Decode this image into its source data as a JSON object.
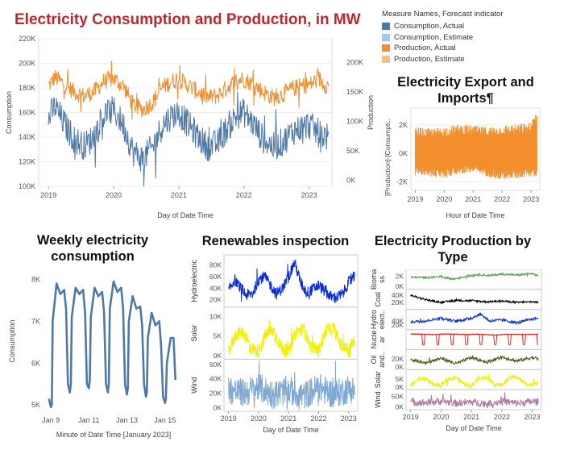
{
  "main_title": "Electricity Consumption and Production, in MW",
  "legend": {
    "title": "Measure Names, Forecast indicator",
    "items": [
      {
        "label": "Consumption, Actual",
        "color": "#4e79a7"
      },
      {
        "label": "Consumption, Estimate",
        "color": "#a0cbe8"
      },
      {
        "label": "Production, Actual",
        "color": "#f28e2b"
      },
      {
        "label": "Production, Estimate",
        "color": "#ffbe7d"
      }
    ]
  },
  "titles": {
    "export": "Electricity Export and Imports¶",
    "weekly": "Weekly electricity consumption",
    "renew": "Renewables inspection",
    "bytype": "Electricity Production by Type"
  },
  "chart_data": [
    {
      "id": "main",
      "type": "line",
      "xlabel": "Day of Date Time",
      "ylabel_left": "Consumption",
      "ylabel_right": "Production",
      "x_ticks": [
        "2019",
        "2020",
        "2021",
        "2022",
        "2023"
      ],
      "x_range": [
        2018.85,
        2023.35
      ],
      "y_left_ticks": [
        "100K",
        "120K",
        "140K",
        "160K",
        "180K",
        "200K",
        "220K"
      ],
      "y_left_range": [
        100000,
        220000
      ],
      "y_right_ticks": [
        "0K",
        "50K",
        "100K",
        "150K",
        "200K"
      ],
      "y_right_range": [
        -10000,
        240000
      ],
      "series": [
        {
          "name": "Consumption, Actual",
          "color": "#4e79a7",
          "x": [
            2019.0,
            2019.1,
            2019.25,
            2019.4,
            2019.55,
            2019.7,
            2019.85,
            2020.0,
            2020.15,
            2020.3,
            2020.45,
            2020.6,
            2020.75,
            2020.9,
            2021.0,
            2021.15,
            2021.3,
            2021.45,
            2021.6,
            2021.75,
            2021.9,
            2022.0,
            2022.15,
            2022.3,
            2022.45,
            2022.6,
            2022.75,
            2022.9,
            2023.0,
            2023.15,
            2023.3
          ],
          "y": [
            155000,
            165000,
            150000,
            138000,
            133000,
            140000,
            158000,
            162000,
            150000,
            128000,
            122000,
            132000,
            150000,
            158000,
            160000,
            150000,
            140000,
            132000,
            135000,
            148000,
            158000,
            160000,
            150000,
            138000,
            132000,
            136000,
            145000,
            148000,
            150000,
            143000,
            140000
          ]
        },
        {
          "name": "Production, Actual",
          "color": "#f28e2b",
          "x": [
            2019.0,
            2019.1,
            2019.25,
            2019.4,
            2019.55,
            2019.7,
            2019.85,
            2020.0,
            2020.15,
            2020.3,
            2020.45,
            2020.6,
            2020.75,
            2020.9,
            2021.0,
            2021.15,
            2021.3,
            2021.45,
            2021.6,
            2021.75,
            2021.9,
            2022.0,
            2022.15,
            2022.3,
            2022.45,
            2022.6,
            2022.75,
            2022.9,
            2023.0,
            2023.15,
            2023.3
          ],
          "y": [
            160000,
            175000,
            162000,
            150000,
            143000,
            150000,
            168000,
            172000,
            160000,
            128000,
            120000,
            132000,
            158000,
            168000,
            172000,
            160000,
            150000,
            140000,
            144000,
            158000,
            170000,
            172000,
            162000,
            150000,
            140000,
            146000,
            156000,
            160000,
            162000,
            172000,
            158000
          ]
        }
      ]
    },
    {
      "id": "export",
      "type": "line",
      "xlabel": "Hour of Date Time",
      "ylabel": "[Production]-[Consumpti..",
      "x_ticks": [
        "2019",
        "2020",
        "2021",
        "2022",
        "2023"
      ],
      "x_range": [
        2018.85,
        2023.3
      ],
      "y_ticks": [
        "-2K",
        "0K",
        "2K"
      ],
      "y_range": [
        -2600,
        3200
      ],
      "series": [
        {
          "name": "",
          "color": "#f28e2b",
          "x": [
            2019.0,
            2019.5,
            2020.0,
            2020.5,
            2021.0,
            2021.5,
            2022.0,
            2022.5,
            2023.0,
            2023.2
          ],
          "y": [
            400,
            300,
            200,
            400,
            500,
            300,
            200,
            400,
            500,
            2600
          ],
          "band_low": [
            -1400,
            -1500,
            -1600,
            -1300,
            -1200,
            -1500,
            -1700,
            -1600,
            -1500,
            -1500
          ],
          "band_high": [
            1700,
            1600,
            1700,
            1900,
            1800,
            1700,
            1800,
            1900,
            2000,
            3000
          ]
        }
      ]
    },
    {
      "id": "weekly",
      "type": "line",
      "xlabel": "Minute of Date Time [January 2023]",
      "ylabel": "Consumption",
      "x_ticks": [
        "Jan 9",
        "Jan 11",
        "Jan 13",
        "Jan 15"
      ],
      "x_range": [
        8.7,
        15.9
      ],
      "y_ticks": [
        "5K",
        "6K",
        "7K",
        "8K"
      ],
      "y_range": [
        4850,
        8200
      ],
      "series": [
        {
          "name": "",
          "color": "#4e79a7",
          "x": [
            8.9,
            9.0,
            9.05,
            9.1,
            9.3,
            9.5,
            9.7,
            9.8,
            9.9,
            10.0,
            10.05,
            10.1,
            10.3,
            10.5,
            10.7,
            10.8,
            10.9,
            11.0,
            11.05,
            11.1,
            11.3,
            11.5,
            11.7,
            11.8,
            11.9,
            12.0,
            12.05,
            12.1,
            12.3,
            12.5,
            12.7,
            12.8,
            12.9,
            13.0,
            13.05,
            13.1,
            13.3,
            13.5,
            13.7,
            13.8,
            13.9,
            14.0,
            14.05,
            14.1,
            14.3,
            14.5,
            14.7,
            14.8,
            14.9,
            15.0,
            15.05,
            15.1,
            15.3,
            15.45,
            15.55
          ],
          "y": [
            5150,
            4950,
            5000,
            7000,
            7900,
            7650,
            7750,
            7300,
            5500,
            5300,
            5500,
            7100,
            7800,
            7650,
            7750,
            7200,
            5500,
            5400,
            5600,
            7100,
            7800,
            7600,
            7700,
            7200,
            5500,
            5300,
            5500,
            7300,
            7950,
            7700,
            7800,
            7300,
            5500,
            5250,
            5400,
            7000,
            7600,
            7300,
            7350,
            6900,
            5500,
            5200,
            5300,
            6600,
            7200,
            6900,
            7000,
            6400,
            5200,
            5050,
            5150,
            6000,
            6600,
            6600,
            5600
          ]
        }
      ]
    },
    {
      "id": "renewables",
      "type": "line",
      "xlabel": "Day of Date Time",
      "x_ticks": [
        "2019",
        "2020",
        "2021",
        "2022",
        "2023"
      ],
      "x_range": [
        2018.85,
        2023.3
      ],
      "panels": [
        {
          "name": "Hydroelectric",
          "color": "#0a2de0",
          "y_ticks": [
            "20K",
            "40K",
            "60K",
            "80K"
          ],
          "y_range": [
            10000,
            95000
          ],
          "x": [
            2019.0,
            2019.2,
            2019.4,
            2019.6,
            2019.8,
            2020.0,
            2020.2,
            2020.4,
            2020.6,
            2020.8,
            2021.0,
            2021.2,
            2021.4,
            2021.6,
            2021.8,
            2022.0,
            2022.2,
            2022.4,
            2022.6,
            2022.8,
            2023.0,
            2023.2
          ],
          "y": [
            35000,
            55000,
            40000,
            28000,
            30000,
            55000,
            60000,
            45000,
            30000,
            40000,
            60000,
            85000,
            50000,
            32000,
            38000,
            45000,
            35000,
            25000,
            24000,
            30000,
            50000,
            60000
          ]
        },
        {
          "name": "Solar",
          "color": "#f0f000",
          "y_ticks": [
            "0K",
            "5K",
            "10K"
          ],
          "y_range": [
            -500,
            12000
          ],
          "x": [
            2019.0,
            2019.25,
            2019.5,
            2019.75,
            2020.0,
            2020.25,
            2020.5,
            2020.75,
            2021.0,
            2021.25,
            2021.5,
            2021.75,
            2022.0,
            2022.25,
            2022.5,
            2022.75,
            2023.0,
            2023.2
          ],
          "y": [
            1000,
            5500,
            6000,
            2000,
            1000,
            5500,
            6500,
            2000,
            1000,
            6000,
            6800,
            2200,
            1200,
            6500,
            7000,
            2500,
            1500,
            4000
          ]
        },
        {
          "name": "Wind",
          "color": "#7fa9d1",
          "y_ticks": [
            "0K",
            "20K",
            "40K",
            "60K"
          ],
          "y_range": [
            -3000,
            65000
          ],
          "x": [
            2019.0,
            2019.5,
            2020.0,
            2020.5,
            2021.0,
            2021.5,
            2022.0,
            2022.5,
            2023.0,
            2023.2
          ],
          "y": [
            25000,
            20000,
            28000,
            18000,
            24000,
            16000,
            28000,
            18000,
            26000,
            24000
          ]
        }
      ]
    },
    {
      "id": "bytype",
      "type": "line",
      "xlabel": "Day of Date Time",
      "x_ticks": [
        "2019",
        "2020",
        "2021",
        "2022",
        "2023"
      ],
      "x_range": [
        2018.85,
        2023.3
      ],
      "panels": [
        {
          "name": "Bioma ss",
          "color": "#59a14f",
          "y_ticks": [
            "0K",
            "2K"
          ],
          "y_range": [
            -300,
            3000
          ],
          "x": [
            2019.0,
            2019.5,
            2020.0,
            2020.4,
            2020.8,
            2021.2,
            2021.6,
            2022.0,
            2022.5,
            2023.0,
            2023.2
          ],
          "y": [
            1800,
            1700,
            1900,
            1400,
            1900,
            2300,
            2100,
            2400,
            2200,
            2500,
            2000
          ]
        },
        {
          "name": "Coal",
          "color": "#000000",
          "y_ticks": [
            "20K",
            "40K"
          ],
          "y_range": [
            5000,
            52000
          ],
          "x": [
            2019.0,
            2019.5,
            2020.0,
            2020.5,
            2021.0,
            2021.5,
            2022.0,
            2022.5,
            2023.0,
            2023.2
          ],
          "y": [
            40000,
            28000,
            20000,
            26000,
            25000,
            22000,
            24000,
            20000,
            22000,
            20000
          ]
        },
        {
          "name": "Hydro elect..",
          "color": "#0a2de0",
          "y_ticks": [
            "20K",
            "40K"
          ],
          "y_range": [
            5000,
            90000
          ],
          "x": [
            2019.0,
            2019.5,
            2020.0,
            2020.5,
            2021.0,
            2021.3,
            2021.6,
            2022.0,
            2022.5,
            2023.0,
            2023.2
          ],
          "y": [
            35000,
            40000,
            55000,
            38000,
            55000,
            75000,
            40000,
            45000,
            30000,
            50000,
            55000
          ]
        },
        {
          "name": "Nucle ar",
          "color": "#e8231f",
          "y_ticks": [],
          "y_range": [
            0,
            3000
          ],
          "x": [
            2019.0,
            2019.8,
            2020.2,
            2020.8,
            2021.2,
            2021.8,
            2022.2,
            2022.8,
            2023.2
          ],
          "y": [
            2500,
            2400,
            2500,
            2400,
            2450,
            2300,
            2450,
            2400,
            2450
          ]
        },
        {
          "name": "Oil and..",
          "color": "#5b5b16",
          "y_ticks": [
            "0K",
            "20K"
          ],
          "y_range": [
            -3000,
            40000
          ],
          "x": [
            2019.0,
            2019.5,
            2020.0,
            2020.5,
            2021.0,
            2021.5,
            2022.0,
            2022.5,
            2023.0,
            2023.2
          ],
          "y": [
            18000,
            10000,
            22000,
            8000,
            24000,
            12000,
            25000,
            15000,
            24000,
            20000
          ]
        },
        {
          "name": "Solar",
          "color": "#f0f000",
          "y_ticks": [
            "0K",
            "5K"
          ],
          "y_range": [
            -500,
            10000
          ],
          "x": [
            2019.0,
            2019.25,
            2019.5,
            2019.75,
            2020.0,
            2020.25,
            2020.5,
            2020.75,
            2021.0,
            2021.25,
            2021.5,
            2021.75,
            2022.0,
            2022.25,
            2022.5,
            2022.75,
            2023.0,
            2023.2
          ],
          "y": [
            1000,
            5000,
            5500,
            1800,
            1000,
            5200,
            6000,
            2000,
            1000,
            5500,
            6200,
            2000,
            1200,
            6000,
            6500,
            2200,
            1500,
            3500
          ]
        },
        {
          "name": "Wind",
          "color": "#b07aa1",
          "y_ticks": [
            "0K",
            "50K"
          ],
          "y_range": [
            -5000,
            75000
          ],
          "x": [
            2019.0,
            2019.5,
            2020.0,
            2020.5,
            2021.0,
            2021.5,
            2022.0,
            2022.5,
            2023.0,
            2023.2
          ],
          "y": [
            25000,
            20000,
            28000,
            18000,
            24000,
            16000,
            28000,
            18000,
            26000,
            24000
          ]
        }
      ]
    }
  ]
}
